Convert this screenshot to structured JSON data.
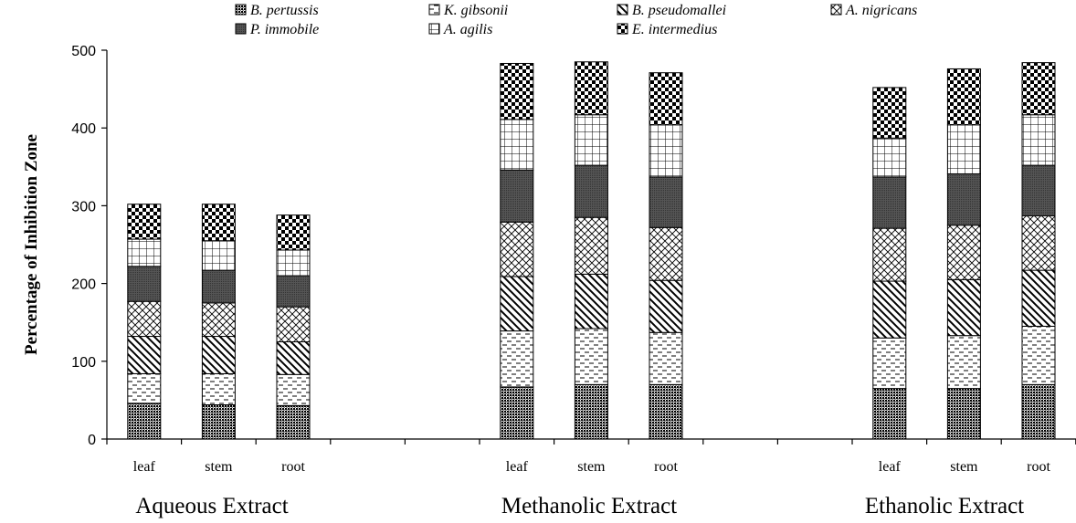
{
  "chart_data": {
    "type": "bar",
    "stacked": true,
    "ylabel": "Percentage of Inhibition Zone",
    "ylim": [
      0,
      500
    ],
    "yticks": [
      0,
      100,
      200,
      300,
      400,
      500
    ],
    "grid": false,
    "legend_position": "top",
    "groups": [
      {
        "label": "Aqueous Extract",
        "categories": [
          "leaf",
          "stem",
          "root"
        ]
      },
      {
        "label": "Methanolic Extract",
        "categories": [
          "leaf",
          "stem",
          "root"
        ]
      },
      {
        "label": "Ethanolic Extract",
        "categories": [
          "leaf",
          "stem",
          "root"
        ]
      }
    ],
    "series": [
      {
        "name": "B. pertussis",
        "pattern": "dots-dense",
        "values": [
          46,
          44,
          43,
          67,
          70,
          70,
          65,
          65,
          70
        ]
      },
      {
        "name": "P. immobile",
        "pattern": "dark-gray",
        "values": [
          45,
          42,
          40,
          67,
          67,
          65,
          66,
          66,
          65
        ]
      },
      {
        "name": "K. gibsonii",
        "pattern": "dashes",
        "values": [
          38,
          40,
          40,
          72,
          72,
          67,
          65,
          68,
          75
        ]
      },
      {
        "name": "A. agilis",
        "pattern": "grid",
        "values": [
          35,
          38,
          33,
          65,
          65,
          67,
          50,
          63,
          65
        ]
      },
      {
        "name": "B. pseudomallei",
        "pattern": "diagonal",
        "values": [
          48,
          48,
          42,
          70,
          70,
          67,
          73,
          72,
          72
        ]
      },
      {
        "name": "E. intermedius",
        "pattern": "checker",
        "values": [
          45,
          47,
          45,
          72,
          68,
          67,
          65,
          72,
          67
        ]
      },
      {
        "name": "A. nigricans",
        "pattern": "crosshatch",
        "values": [
          45,
          43,
          45,
          70,
          73,
          68,
          68,
          70,
          70
        ]
      }
    ],
    "stack_order": [
      "B. pertussis",
      "K. gibsonii",
      "B. pseudomallei",
      "A. nigricans",
      "P. immobile",
      "A. agilis",
      "E. intermedius"
    ]
  }
}
